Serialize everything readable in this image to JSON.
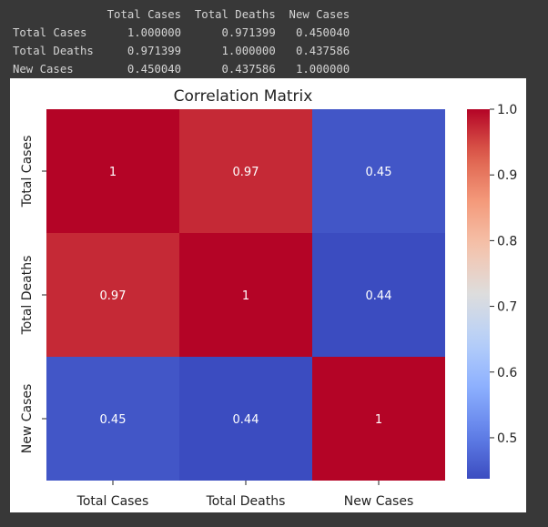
{
  "console_output": {
    "header_line": "              Total Cases  Total Deaths  New Cases",
    "row_lines": [
      "Total Cases      1.000000      0.971399   0.450040",
      "Total Deaths     0.971399      1.000000   0.437586",
      "New Cases        0.450040      0.437586   1.000000"
    ]
  },
  "chart_data": {
    "type": "heatmap",
    "title": "Correlation Matrix",
    "x_categories": [
      "Total Cases",
      "Total Deaths",
      "New Cases"
    ],
    "y_categories": [
      "Total Cases",
      "Total Deaths",
      "New Cases"
    ],
    "values": [
      [
        1.0,
        0.971399,
        0.45004
      ],
      [
        0.971399,
        1.0,
        0.437586
      ],
      [
        0.45004,
        0.437586,
        1.0
      ]
    ],
    "annotations": [
      [
        "1",
        "0.97",
        "0.45"
      ],
      [
        "0.97",
        "1",
        "0.44"
      ],
      [
        "0.45",
        "0.44",
        "1"
      ]
    ],
    "colormap": "coolwarm",
    "colorbar": {
      "vmin": 0.437586,
      "vmax": 1.0,
      "ticks": [
        0.5,
        0.6,
        0.7,
        0.8,
        0.9,
        1.0
      ],
      "tick_labels": [
        "0.5",
        "0.6",
        "0.7",
        "0.8",
        "0.9",
        "1.0"
      ]
    },
    "grid": false,
    "legend": "colorbar-right"
  }
}
